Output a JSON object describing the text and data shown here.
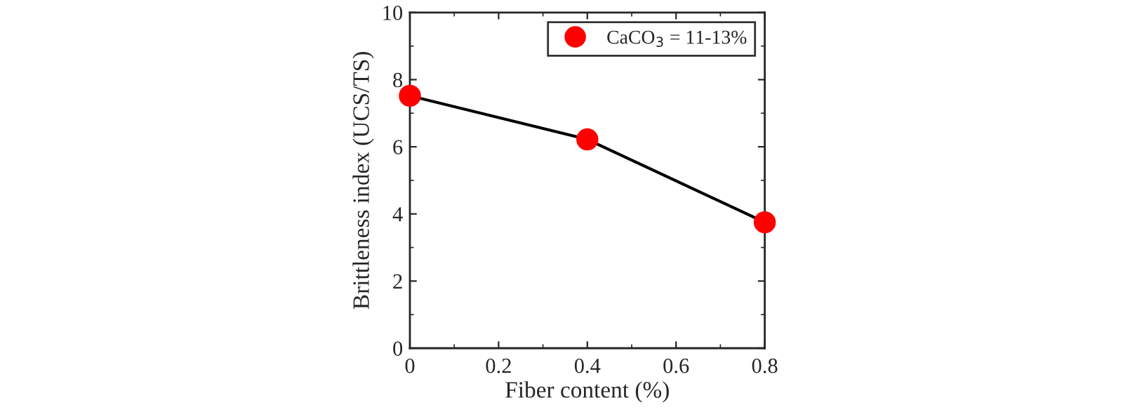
{
  "chart_data": {
    "type": "line",
    "xlabel": "Fiber content (%)",
    "ylabel": "Brittleness index (UCS/TS)",
    "x": [
      0,
      0.4,
      0.8
    ],
    "series": [
      {
        "name": "CaCO$_{3}$ = 11-13%",
        "color": "#ff0000",
        "values": [
          7.52,
          6.22,
          3.75
        ]
      }
    ],
    "xlim": [
      0,
      0.8
    ],
    "xticks": [
      0,
      0.2,
      0.4,
      0.6,
      0.8
    ],
    "ylim": [
      0,
      10
    ],
    "yticks": [
      0,
      2,
      4,
      6,
      8,
      10
    ],
    "marker": "circle",
    "line_style": "solid",
    "legend": "top right",
    "grid": false
  }
}
